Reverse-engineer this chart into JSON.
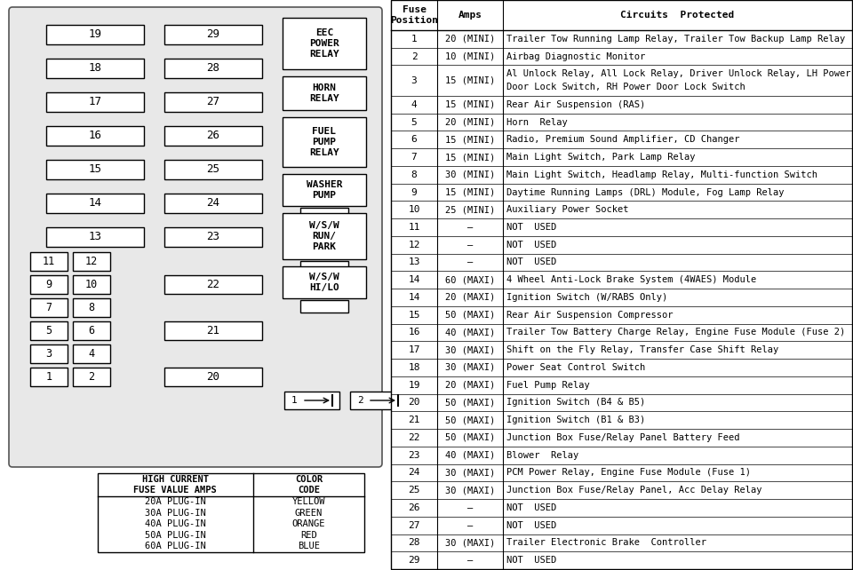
{
  "relays": [
    {
      "label": "EEC\nPOWER\nRELAY"
    },
    {
      "label": "HORN\nRELAY"
    },
    {
      "label": "FUEL\nPUMP\nRELAY"
    },
    {
      "label": "WASHER\nPUMP"
    },
    {
      "label": "W/S/W\nRUN/\nPARK"
    },
    {
      "label": "W/S/W\nHI/LO"
    }
  ],
  "table_headers": [
    "Fuse\nPosition",
    "Amps",
    "Circuits  Protected"
  ],
  "table_rows": [
    [
      "1",
      "20 (MINI)",
      "Trailer Tow Running Lamp Relay, Trailer Tow Backup Lamp Relay"
    ],
    [
      "2",
      "10 (MINI)",
      "Airbag Diagnostic Monitor"
    ],
    [
      "3",
      "15 (MINI)",
      "Al Unlock Relay, All Lock Relay, Driver Unlock Relay, LH Power\nDoor Lock Switch, RH Power Door Lock Switch"
    ],
    [
      "4",
      "15 (MINI)",
      "Rear Air Suspension (RAS)"
    ],
    [
      "5",
      "20 (MINI)",
      "Horn  Relay"
    ],
    [
      "6",
      "15 (MINI)",
      "Radio, Premium Sound Amplifier, CD Changer"
    ],
    [
      "7",
      "15 (MINI)",
      "Main Light Switch, Park Lamp Relay"
    ],
    [
      "8",
      "30 (MINI)",
      "Main Light Switch, Headlamp Relay, Multi-function Switch"
    ],
    [
      "9",
      "15 (MINI)",
      "Daytime Running Lamps (DRL) Module, Fog Lamp Relay"
    ],
    [
      "10",
      "25 (MINI)",
      "Auxiliary Power Socket"
    ],
    [
      "11",
      "–",
      "NOT  USED"
    ],
    [
      "12",
      "–",
      "NOT  USED"
    ],
    [
      "13",
      "–",
      "NOT  USED"
    ],
    [
      "14",
      "60 (MAXI)",
      "4 Wheel Anti-Lock Brake System (4WAES) Module"
    ],
    [
      "14",
      "20 (MAXI)",
      "Ignition Switch (W/RABS Only)"
    ],
    [
      "15",
      "50 (MAXI)",
      "Rear Air Suspension Compressor"
    ],
    [
      "16",
      "40 (MAXI)",
      "Trailer Tow Battery Charge Relay, Engine Fuse Module (Fuse 2)"
    ],
    [
      "17",
      "30 (MAXI)",
      "Shift on the Fly Relay, Transfer Case Shift Relay"
    ],
    [
      "18",
      "30 (MAXI)",
      "Power Seat Control Switch"
    ],
    [
      "19",
      "20 (MAXI)",
      "Fuel Pump Relay"
    ],
    [
      "20",
      "50 (MAXI)",
      "Ignition Switch (B4 & B5)"
    ],
    [
      "21",
      "50 (MAXI)",
      "Ignition Switch (B1 & B3)"
    ],
    [
      "22",
      "50 (MAXI)",
      "Junction Box Fuse/Relay Panel Battery Feed"
    ],
    [
      "23",
      "40 (MAXI)",
      "Blower  Relay"
    ],
    [
      "24",
      "30 (MAXI)",
      "PCM Power Relay, Engine Fuse Module (Fuse 1)"
    ],
    [
      "25",
      "30 (MAXI)",
      "Junction Box Fuse/Relay Panel, Acc Delay Relay"
    ],
    [
      "26",
      "–",
      "NOT  USED"
    ],
    [
      "27",
      "–",
      "NOT  USED"
    ],
    [
      "28",
      "30 (MAXI)",
      "Trailer Electronic Brake  Controller"
    ],
    [
      "29",
      "–",
      "NOT  USED"
    ]
  ],
  "color_table_rows": [
    [
      "20A PLUG-IN",
      "YELLOW"
    ],
    [
      "30A PLUG-IN",
      "GREEN"
    ],
    [
      "40A PLUG-IN",
      "ORANGE"
    ],
    [
      "50A PLUG-IN",
      "RED"
    ],
    [
      "60A PLUG-IN",
      "BLUE"
    ]
  ]
}
